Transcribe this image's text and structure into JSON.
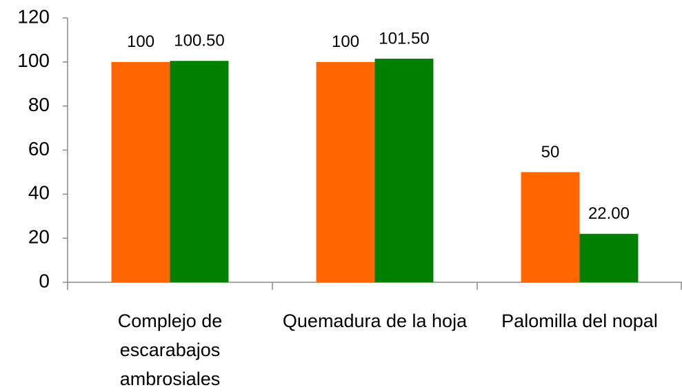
{
  "chart_data": {
    "type": "bar",
    "categories": [
      "Complejo de escarabajos ambrosiales",
      "Quemadura de la hoja",
      "Palomilla del nopal"
    ],
    "series": [
      {
        "color": "#ff6600",
        "values": [
          100,
          100,
          50
        ]
      },
      {
        "color": "#008000",
        "values": [
          100.5,
          101.5,
          22
        ],
        "value_labels": [
          "100.50",
          "101.50",
          "22.00"
        ]
      }
    ],
    "ylim": [
      0,
      120
    ],
    "yticks": [
      0,
      20,
      40,
      60,
      80,
      100,
      120
    ],
    "grid": false
  }
}
